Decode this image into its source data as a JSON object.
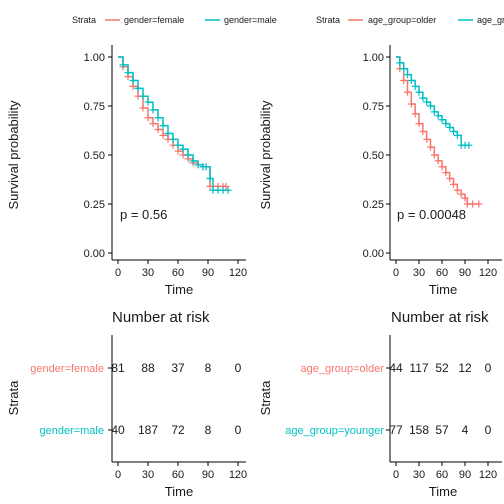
{
  "colors": {
    "group_a": "#F8766D",
    "group_b": "#00BFC4",
    "axis": "#000000",
    "text": "#1a1a1a"
  },
  "chart_data": [
    {
      "type": "line",
      "chart": "survival",
      "legend_title": "Strata",
      "legend_labels": [
        "gender=female",
        "gender=male"
      ],
      "legend_position": "top",
      "ylabel": "Survival probability",
      "xlabel": "Time",
      "xticks": [
        "0",
        "30",
        "60",
        "90",
        "120"
      ],
      "yticks": [
        "0.00",
        "0.25",
        "0.50",
        "0.75",
        "1.00"
      ],
      "xlim": [
        0,
        120
      ],
      "ylim": [
        0,
        1
      ],
      "pvalue": "p = 0.56",
      "series": [
        {
          "name": "gender=female",
          "x": [
            0,
            5,
            10,
            15,
            20,
            25,
            30,
            35,
            40,
            45,
            50,
            55,
            60,
            65,
            70,
            75,
            80,
            85,
            88,
            92,
            100,
            105,
            108
          ],
          "y": [
            1.0,
            0.95,
            0.9,
            0.85,
            0.8,
            0.74,
            0.69,
            0.66,
            0.63,
            0.6,
            0.58,
            0.55,
            0.52,
            0.5,
            0.48,
            0.46,
            0.45,
            0.44,
            0.44,
            0.34,
            0.34,
            0.34,
            0.34
          ]
        },
        {
          "name": "gender=male",
          "x": [
            0,
            5,
            10,
            15,
            20,
            25,
            30,
            35,
            40,
            45,
            50,
            55,
            60,
            65,
            70,
            75,
            80,
            85,
            88,
            92,
            95,
            100,
            105,
            110
          ],
          "y": [
            1.0,
            0.96,
            0.92,
            0.88,
            0.84,
            0.8,
            0.77,
            0.73,
            0.69,
            0.65,
            0.61,
            0.58,
            0.55,
            0.53,
            0.5,
            0.47,
            0.45,
            0.44,
            0.44,
            0.38,
            0.32,
            0.32,
            0.32,
            0.32
          ]
        }
      ]
    },
    {
      "type": "line",
      "chart": "survival",
      "legend_title": "Strata",
      "legend_labels": [
        "age_group=older",
        "age_group=younger"
      ],
      "legend_position": "top",
      "ylabel": "Survival probability",
      "xlabel": "Time",
      "xticks": [
        "0",
        "30",
        "60",
        "90",
        "120"
      ],
      "yticks": [
        "0.00",
        "0.25",
        "0.50",
        "0.75",
        "1.00"
      ],
      "xlim": [
        0,
        120
      ],
      "ylim": [
        0,
        1
      ],
      "pvalue": "p = 0.00048",
      "series": [
        {
          "name": "age_group=older",
          "x": [
            0,
            5,
            10,
            15,
            20,
            25,
            30,
            35,
            40,
            45,
            50,
            55,
            60,
            65,
            70,
            75,
            80,
            85,
            90,
            93,
            100,
            108
          ],
          "y": [
            1.0,
            0.94,
            0.88,
            0.82,
            0.76,
            0.71,
            0.66,
            0.62,
            0.58,
            0.54,
            0.5,
            0.47,
            0.44,
            0.41,
            0.38,
            0.35,
            0.32,
            0.3,
            0.28,
            0.25,
            0.25,
            0.25
          ]
        },
        {
          "name": "age_group=younger",
          "x": [
            0,
            5,
            10,
            15,
            20,
            25,
            30,
            35,
            40,
            45,
            50,
            55,
            60,
            65,
            70,
            75,
            80,
            85,
            90,
            95
          ],
          "y": [
            1.0,
            0.97,
            0.94,
            0.91,
            0.88,
            0.85,
            0.82,
            0.79,
            0.77,
            0.75,
            0.72,
            0.7,
            0.68,
            0.66,
            0.64,
            0.62,
            0.6,
            0.55,
            0.55,
            0.55
          ]
        }
      ]
    },
    {
      "type": "table",
      "chart": "risk",
      "title": "Number at risk",
      "ylabel": "Strata",
      "xlabel": "Time",
      "xticks": [
        "0",
        "30",
        "60",
        "90",
        "120"
      ],
      "xlim": [
        0,
        120
      ],
      "rows": [
        {
          "label": "gender=female",
          "times": [
            0,
            30,
            60,
            90,
            120
          ],
          "values": [
            "81",
            "88",
            "37",
            "8",
            "0"
          ]
        },
        {
          "label": "gender=male",
          "times": [
            0,
            30,
            60,
            90,
            120
          ],
          "values": [
            "40",
            "187",
            "72",
            "8",
            "0"
          ]
        }
      ]
    },
    {
      "type": "table",
      "chart": "risk",
      "title": "Number at risk",
      "ylabel": "Strata",
      "xlabel": "Time",
      "xticks": [
        "0",
        "30",
        "60",
        "90",
        "120"
      ],
      "xlim": [
        0,
        120
      ],
      "rows": [
        {
          "label": "age_group=older",
          "times": [
            0,
            30,
            60,
            90,
            120
          ],
          "values": [
            "44",
            "117",
            "52",
            "12",
            "0"
          ]
        },
        {
          "label": "age_group=younger",
          "times": [
            0,
            30,
            60,
            90,
            120
          ],
          "values": [
            "77",
            "158",
            "57",
            "4",
            "0"
          ]
        }
      ]
    }
  ]
}
